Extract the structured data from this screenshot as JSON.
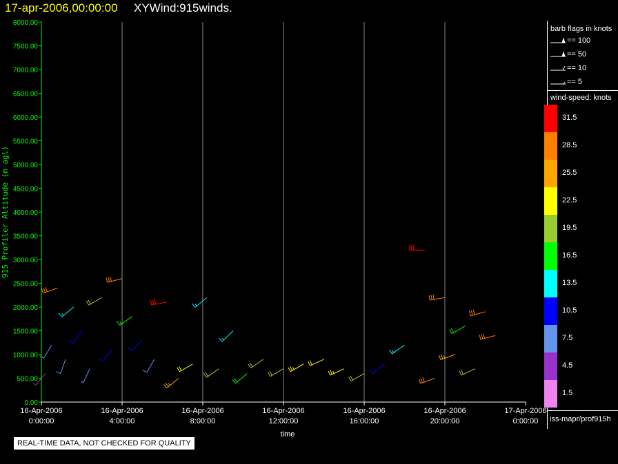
{
  "header": {
    "date": "17-apr-2006,00:00:00",
    "title": "XYWind:915winds.",
    "date_color": "#ffff00",
    "title_color": "#ffffff"
  },
  "notice": "REAL-TIME DATA, NOT CHECKED FOR QUALITY",
  "legend": {
    "barb_title": "barb flags in knots",
    "barb_flags": [
      {
        "label": "== 100",
        "icon": "pennant-barb-icon"
      },
      {
        "label": "== 50",
        "icon": "pennant-barb-icon"
      },
      {
        "label": "== 10",
        "icon": "full-barb-icon"
      },
      {
        "label": "== 5",
        "icon": "half-barb-icon"
      }
    ],
    "speed_title": "wind-speed: knots",
    "speed_bins": [
      {
        "label": "31.5",
        "color": "#ff0000"
      },
      {
        "label": "28.5",
        "color": "#ff7f00"
      },
      {
        "label": "25.5",
        "color": "#ffa500"
      },
      {
        "label": "22.5",
        "color": "#ffff00"
      },
      {
        "label": "19.5",
        "color": "#9acd32"
      },
      {
        "label": "16.5",
        "color": "#00ff00"
      },
      {
        "label": "13.5",
        "color": "#00ffff"
      },
      {
        "label": "10.5",
        "color": "#0000ff"
      },
      {
        "label": "7.5",
        "color": "#6495ed"
      },
      {
        "label": "4.5",
        "color": "#9932cc"
      },
      {
        "label": "1.5",
        "color": "#ee82ee"
      }
    ],
    "footer": "iss-mapr/prof915h"
  },
  "chart_data": {
    "type": "scatter",
    "title": "17-apr-2006,00:00:00  XYWind:915winds.",
    "xlabel": "time",
    "ylabel": "915 Profiler Altitude (m agl)",
    "ylim": [
      0,
      8000
    ],
    "xlim": [
      0,
      24
    ],
    "axis_color": "#00ff00",
    "grid": "vertical lines at each x tick",
    "y_ticks": [
      "0.00",
      "500.00",
      "1000.00",
      "1500.00",
      "2000.00",
      "2500.00",
      "3000.00",
      "3500.00",
      "4000.00",
      "4500.00",
      "5000.00",
      "5500.00",
      "6000.00",
      "6500.00",
      "7000.00",
      "7500.00",
      "8000.00"
    ],
    "x_ticks": [
      {
        "date": "16-Apr-2006",
        "time": "0:00:00"
      },
      {
        "date": "16-Apr-2006",
        "time": "4:00:00"
      },
      {
        "date": "16-Apr-2006",
        "time": "8:00:00"
      },
      {
        "date": "16-Apr-2006",
        "time": "12:00:00"
      },
      {
        "date": "16-Apr-2006",
        "time": "16:00:00"
      },
      {
        "date": "16-Apr-2006",
        "time": "20:00:00"
      },
      {
        "date": "17-Apr-2006",
        "time": "0:00:00"
      }
    ],
    "series": [
      {
        "values": [
          {
            "x": 0.2,
            "y": 600,
            "speed": 6,
            "dir": 220
          },
          {
            "x": 0.5,
            "y": 1200,
            "speed": 8,
            "dir": 210
          },
          {
            "x": 0.8,
            "y": 2400,
            "speed": 30,
            "dir": 250
          },
          {
            "x": 1.2,
            "y": 900,
            "speed": 9,
            "dir": 200
          },
          {
            "x": 1.6,
            "y": 2000,
            "speed": 14,
            "dir": 230
          },
          {
            "x": 2.0,
            "y": 1500,
            "speed": 11,
            "dir": 215
          },
          {
            "x": 2.4,
            "y": 700,
            "speed": 7,
            "dir": 205
          },
          {
            "x": 3.0,
            "y": 2200,
            "speed": 20,
            "dir": 240
          },
          {
            "x": 3.5,
            "y": 1100,
            "speed": 10,
            "dir": 220
          },
          {
            "x": 4.0,
            "y": 2600,
            "speed": 29,
            "dir": 255
          },
          {
            "x": 4.5,
            "y": 1800,
            "speed": 17,
            "dir": 235
          },
          {
            "x": 5.0,
            "y": 1300,
            "speed": 12,
            "dir": 225
          },
          {
            "x": 5.6,
            "y": 900,
            "speed": 9,
            "dir": 210
          },
          {
            "x": 6.2,
            "y": 2100,
            "speed": 31,
            "dir": 260
          },
          {
            "x": 6.8,
            "y": 500,
            "speed": 27,
            "dir": 230
          },
          {
            "x": 7.5,
            "y": 800,
            "speed": 22,
            "dir": 240
          },
          {
            "x": 8.2,
            "y": 2200,
            "speed": 15,
            "dir": 230
          },
          {
            "x": 8.8,
            "y": 700,
            "speed": 21,
            "dir": 235
          },
          {
            "x": 9.5,
            "y": 1500,
            "speed": 13,
            "dir": 225
          },
          {
            "x": 10.2,
            "y": 600,
            "speed": 18,
            "dir": 230
          },
          {
            "x": 11.0,
            "y": 900,
            "speed": 20,
            "dir": 235
          },
          {
            "x": 12.0,
            "y": 700,
            "speed": 21,
            "dir": 240
          },
          {
            "x": 13.0,
            "y": 800,
            "speed": 23,
            "dir": 240
          },
          {
            "x": 14.0,
            "y": 900,
            "speed": 22,
            "dir": 245
          },
          {
            "x": 15.0,
            "y": 700,
            "speed": 24,
            "dir": 245
          },
          {
            "x": 16.0,
            "y": 600,
            "speed": 20,
            "dir": 240
          },
          {
            "x": 17.0,
            "y": 800,
            "speed": 11,
            "dir": 230
          },
          {
            "x": 18.0,
            "y": 1200,
            "speed": 15,
            "dir": 235
          },
          {
            "x": 19.0,
            "y": 3200,
            "speed": 31,
            "dir": 270
          },
          {
            "x": 19.5,
            "y": 500,
            "speed": 28,
            "dir": 250
          },
          {
            "x": 20.0,
            "y": 2200,
            "speed": 30,
            "dir": 260
          },
          {
            "x": 20.5,
            "y": 1000,
            "speed": 26,
            "dir": 250
          },
          {
            "x": 21.0,
            "y": 1600,
            "speed": 18,
            "dir": 240
          },
          {
            "x": 21.5,
            "y": 700,
            "speed": 19,
            "dir": 245
          },
          {
            "x": 22.0,
            "y": 1900,
            "speed": 29,
            "dir": 255
          },
          {
            "x": 22.5,
            "y": 1400,
            "speed": 28,
            "dir": 255
          }
        ]
      }
    ],
    "data_extent_note_omitted": true
  }
}
